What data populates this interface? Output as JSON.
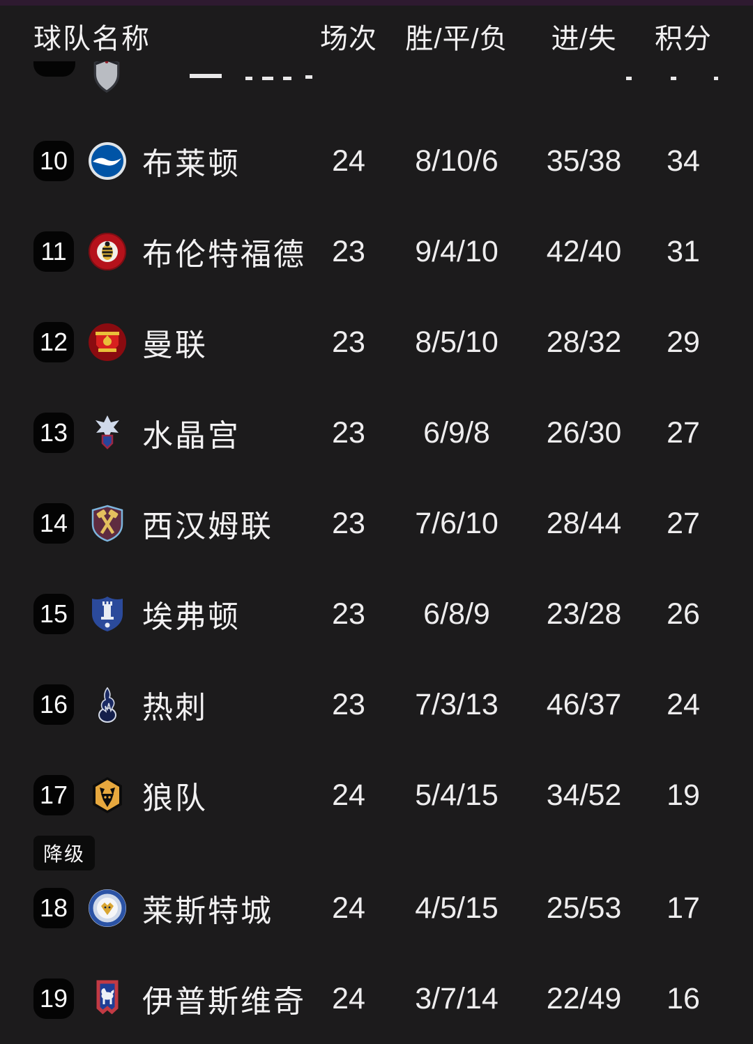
{
  "page": {
    "background": "#1c1b1c",
    "top_strip_color": "#2e1a30",
    "text_color": "#f2f1f2",
    "rank_badge_color": "#040404"
  },
  "table": {
    "columns": {
      "team": "球队名称",
      "played": "场次",
      "wdl": "胜/平/负",
      "goals": "进/失",
      "points": "积分"
    },
    "relegation_label": "降级",
    "rows": [
      {
        "rank": "10",
        "team": "布莱顿",
        "crest": "brighton-crest",
        "played": "24",
        "wdl": "8/10/6",
        "goals": "35/38",
        "points": "34"
      },
      {
        "rank": "11",
        "team": "布伦特福德",
        "crest": "brentford-crest",
        "played": "23",
        "wdl": "9/4/10",
        "goals": "42/40",
        "points": "31"
      },
      {
        "rank": "12",
        "team": "曼联",
        "crest": "manchester-united-crest",
        "played": "23",
        "wdl": "8/5/10",
        "goals": "28/32",
        "points": "29"
      },
      {
        "rank": "13",
        "team": "水晶宫",
        "crest": "crystal-palace-crest",
        "played": "23",
        "wdl": "6/9/8",
        "goals": "26/30",
        "points": "27"
      },
      {
        "rank": "14",
        "team": "西汉姆联",
        "crest": "west-ham-crest",
        "played": "23",
        "wdl": "7/6/10",
        "goals": "28/44",
        "points": "27"
      },
      {
        "rank": "15",
        "team": "埃弗顿",
        "crest": "everton-crest",
        "played": "23",
        "wdl": "6/8/9",
        "goals": "23/28",
        "points": "26"
      },
      {
        "rank": "16",
        "team": "热刺",
        "crest": "tottenham-crest",
        "played": "23",
        "wdl": "7/3/13",
        "goals": "46/37",
        "points": "24"
      },
      {
        "rank": "17",
        "team": "狼队",
        "crest": "wolves-crest",
        "played": "24",
        "wdl": "5/4/15",
        "goals": "34/52",
        "points": "19"
      },
      {
        "rank": "18",
        "team": "莱斯特城",
        "crest": "leicester-crest",
        "played": "24",
        "wdl": "4/5/15",
        "goals": "25/53",
        "points": "17",
        "relegation_before": true
      },
      {
        "rank": "19",
        "team": "伊普斯维奇",
        "crest": "ipswich-crest",
        "played": "24",
        "wdl": "3/7/14",
        "goals": "22/49",
        "points": "16"
      }
    ]
  }
}
